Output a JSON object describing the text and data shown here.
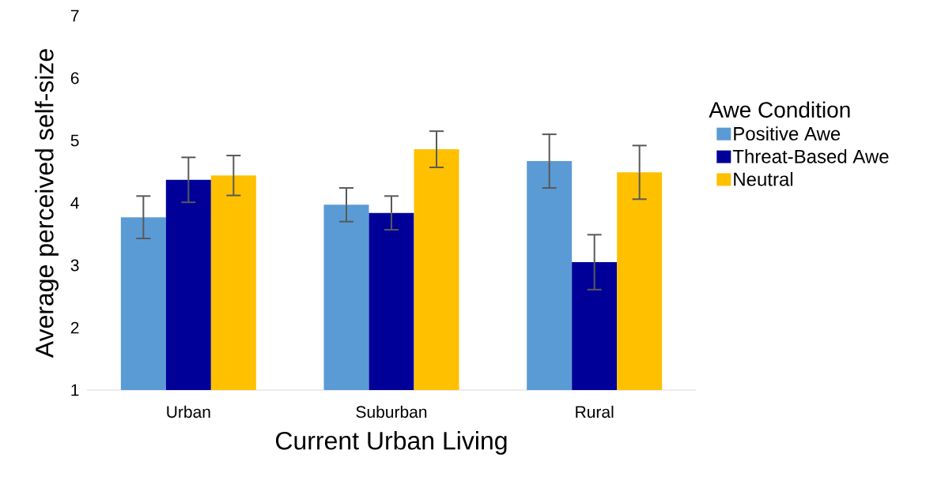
{
  "chart_data": {
    "type": "bar",
    "xlabel": "Current Urban Living",
    "ylabel": "Average perceived self-size",
    "legend_title": "Awe Condition",
    "legend": "right",
    "categories": [
      "Urban",
      "Suburban",
      "Rural"
    ],
    "ylim": [
      1,
      7
    ],
    "yticks": [
      1,
      2,
      3,
      4,
      5,
      6,
      7
    ],
    "grid": false,
    "series": [
      {
        "name": "Positive Awe",
        "color": "#5b9bd5",
        "values": [
          3.77,
          3.97,
          4.67
        ],
        "errors": [
          0.34,
          0.27,
          0.43
        ]
      },
      {
        "name": "Threat-Based Awe",
        "color": "#000099",
        "values": [
          4.37,
          3.84,
          3.05
        ],
        "errors": [
          0.36,
          0.27,
          0.44
        ]
      },
      {
        "name": "Neutral",
        "color": "#ffc000",
        "values": [
          4.44,
          4.86,
          4.49
        ],
        "errors": [
          0.32,
          0.29,
          0.43
        ]
      }
    ]
  }
}
